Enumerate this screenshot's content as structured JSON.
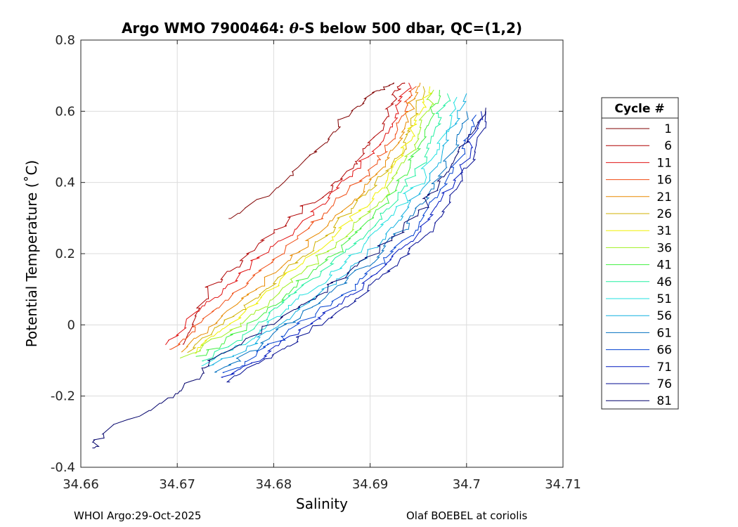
{
  "chart_data": {
    "type": "line",
    "title_prefix": "Argo WMO 7900464: ",
    "title_theta": "θ",
    "title_suffix": "-S below 500 dbar,  QC=(1,2)",
    "xlabel": "Salinity",
    "ylabel": "Potential Temperature (˚C)",
    "xlim": [
      34.66,
      34.71
    ],
    "ylim": [
      -0.4,
      0.8
    ],
    "xticks": [
      34.66,
      34.67,
      34.68,
      34.69,
      34.7,
      34.71
    ],
    "xtick_labels": [
      "34.66",
      "34.67",
      "34.68",
      "34.69",
      "34.7",
      "34.71"
    ],
    "yticks": [
      -0.4,
      -0.2,
      0,
      0.2,
      0.4,
      0.6,
      0.8
    ],
    "ytick_labels": [
      "-0.4",
      "-0.2",
      "0",
      "0.2",
      "0.4",
      "0.6",
      "0.8"
    ],
    "grid": true,
    "legend_title": "Cycle #",
    "legend_position": "outside-right",
    "legend_entries": [
      {
        "label": "1",
        "color": "#800000"
      },
      {
        "label": "6",
        "color": "#b00000"
      },
      {
        "label": "11",
        "color": "#e01010"
      },
      {
        "label": "16",
        "color": "#f04a10"
      },
      {
        "label": "21",
        "color": "#e88a00"
      },
      {
        "label": "26",
        "color": "#d0b000"
      },
      {
        "label": "31",
        "color": "#f0f000"
      },
      {
        "label": "36",
        "color": "#a0f020"
      },
      {
        "label": "41",
        "color": "#40f040"
      },
      {
        "label": "46",
        "color": "#20f0a0"
      },
      {
        "label": "51",
        "color": "#20e0e0"
      },
      {
        "label": "56",
        "color": "#10b0e0"
      },
      {
        "label": "61",
        "color": "#0070c0"
      },
      {
        "label": "66",
        "color": "#0040d0"
      },
      {
        "label": "71",
        "color": "#0018c0"
      },
      {
        "label": "76",
        "color": "#000a90"
      },
      {
        "label": "81",
        "color": "#00006a"
      }
    ],
    "series": [
      {
        "name": "1",
        "color": "#800000",
        "points": [
          [
            34.6755,
            0.3
          ],
          [
            34.681,
            0.4
          ],
          [
            34.6845,
            0.49
          ],
          [
            34.6875,
            0.59
          ],
          [
            34.6905,
            0.66
          ],
          [
            34.6925,
            0.68
          ]
        ]
      },
      {
        "name": "6",
        "color": "#b00000",
        "points": [
          [
            34.6705,
            -0.05
          ],
          [
            34.6735,
            0.1
          ],
          [
            34.677,
            0.2
          ],
          [
            34.681,
            0.28
          ],
          [
            34.6855,
            0.38
          ],
          [
            34.6885,
            0.45
          ],
          [
            34.6905,
            0.53
          ],
          [
            34.6925,
            0.64
          ],
          [
            34.6935,
            0.68
          ]
        ]
      },
      {
        "name": "11",
        "color": "#e01010",
        "points": [
          [
            34.6685,
            -0.06
          ],
          [
            34.6725,
            0.05
          ],
          [
            34.676,
            0.13
          ],
          [
            34.68,
            0.22
          ],
          [
            34.6845,
            0.32
          ],
          [
            34.688,
            0.42
          ],
          [
            34.6905,
            0.49
          ],
          [
            34.6925,
            0.58
          ],
          [
            34.694,
            0.68
          ]
        ]
      },
      {
        "name": "16",
        "color": "#f04a10",
        "points": [
          [
            34.6695,
            -0.07
          ],
          [
            34.673,
            0.02
          ],
          [
            34.6775,
            0.12
          ],
          [
            34.6815,
            0.22
          ],
          [
            34.6855,
            0.32
          ],
          [
            34.6895,
            0.42
          ],
          [
            34.6918,
            0.5
          ],
          [
            34.6935,
            0.6
          ],
          [
            34.6948,
            0.67
          ]
        ]
      },
      {
        "name": "21",
        "color": "#e88a00",
        "points": [
          [
            34.6705,
            -0.07
          ],
          [
            34.674,
            0.01
          ],
          [
            34.678,
            0.1
          ],
          [
            34.682,
            0.19
          ],
          [
            34.686,
            0.29
          ],
          [
            34.6898,
            0.39
          ],
          [
            34.6925,
            0.49
          ],
          [
            34.694,
            0.59
          ],
          [
            34.6952,
            0.68
          ]
        ]
      },
      {
        "name": "26",
        "color": "#d0b000",
        "points": [
          [
            34.671,
            -0.08
          ],
          [
            34.6745,
            0
          ],
          [
            34.6785,
            0.09
          ],
          [
            34.6825,
            0.18
          ],
          [
            34.6865,
            0.28
          ],
          [
            34.6902,
            0.38
          ],
          [
            34.693,
            0.48
          ],
          [
            34.6945,
            0.58
          ],
          [
            34.6955,
            0.67
          ]
        ]
      },
      {
        "name": "31",
        "color": "#f0f000",
        "points": [
          [
            34.6715,
            -0.08
          ],
          [
            34.675,
            -0.01
          ],
          [
            34.679,
            0.08
          ],
          [
            34.683,
            0.17
          ],
          [
            34.687,
            0.27
          ],
          [
            34.6906,
            0.37
          ],
          [
            34.6935,
            0.48
          ],
          [
            34.695,
            0.58
          ],
          [
            34.6962,
            0.67
          ]
        ]
      },
      {
        "name": "36",
        "color": "#a0f020",
        "points": [
          [
            34.6705,
            -0.09
          ],
          [
            34.6755,
            -0.02
          ],
          [
            34.6795,
            0.07
          ],
          [
            34.6835,
            0.16
          ],
          [
            34.6875,
            0.25
          ],
          [
            34.691,
            0.35
          ],
          [
            34.694,
            0.47
          ],
          [
            34.6955,
            0.57
          ],
          [
            34.6966,
            0.66
          ]
        ]
      },
      {
        "name": "41",
        "color": "#40f040",
        "points": [
          [
            34.672,
            -0.09
          ],
          [
            34.676,
            -0.03
          ],
          [
            34.68,
            0.06
          ],
          [
            34.684,
            0.15
          ],
          [
            34.688,
            0.24
          ],
          [
            34.6915,
            0.34
          ],
          [
            34.6945,
            0.46
          ],
          [
            34.696,
            0.56
          ],
          [
            34.6972,
            0.66
          ]
        ]
      },
      {
        "name": "46",
        "color": "#20f0a0",
        "points": [
          [
            34.6725,
            -0.1
          ],
          [
            34.6765,
            -0.04
          ],
          [
            34.6805,
            0.05
          ],
          [
            34.6845,
            0.14
          ],
          [
            34.6885,
            0.23
          ],
          [
            34.692,
            0.33
          ],
          [
            34.695,
            0.44
          ],
          [
            34.6968,
            0.55
          ],
          [
            34.698,
            0.65
          ]
        ]
      },
      {
        "name": "51",
        "color": "#20e0e0",
        "points": [
          [
            34.673,
            -0.11
          ],
          [
            34.677,
            -0.05
          ],
          [
            34.681,
            0.04
          ],
          [
            34.685,
            0.12
          ],
          [
            34.689,
            0.21
          ],
          [
            34.6925,
            0.31
          ],
          [
            34.6955,
            0.42
          ],
          [
            34.6975,
            0.53
          ],
          [
            34.699,
            0.64
          ]
        ]
      },
      {
        "name": "56",
        "color": "#10b0e0",
        "points": [
          [
            34.6735,
            -0.12
          ],
          [
            34.6775,
            -0.06
          ],
          [
            34.6815,
            0.02
          ],
          [
            34.6855,
            0.1
          ],
          [
            34.6895,
            0.19
          ],
          [
            34.693,
            0.29
          ],
          [
            34.696,
            0.4
          ],
          [
            34.698,
            0.52
          ],
          [
            34.7,
            0.65
          ]
        ]
      },
      {
        "name": "61",
        "color": "#0070c0",
        "points": [
          [
            34.674,
            -0.13
          ],
          [
            34.678,
            -0.07
          ],
          [
            34.682,
            0.01
          ],
          [
            34.686,
            0.09
          ],
          [
            34.69,
            0.18
          ],
          [
            34.6935,
            0.27
          ],
          [
            34.6965,
            0.38
          ],
          [
            34.699,
            0.5
          ],
          [
            34.7,
            0.6
          ]
        ]
      },
      {
        "name": "66",
        "color": "#0040d0",
        "points": [
          [
            34.6745,
            -0.14
          ],
          [
            34.6785,
            -0.08
          ],
          [
            34.6825,
            0
          ],
          [
            34.6865,
            0.07
          ],
          [
            34.6905,
            0.16
          ],
          [
            34.694,
            0.25
          ],
          [
            34.697,
            0.36
          ],
          [
            34.6995,
            0.48
          ],
          [
            34.701,
            0.59
          ]
        ]
      },
      {
        "name": "71",
        "color": "#0018c0",
        "points": [
          [
            34.675,
            -0.15
          ],
          [
            34.679,
            -0.09
          ],
          [
            34.683,
            -0.01
          ],
          [
            34.687,
            0.06
          ],
          [
            34.691,
            0.15
          ],
          [
            34.6945,
            0.24
          ],
          [
            34.6975,
            0.35
          ],
          [
            34.7,
            0.47
          ],
          [
            34.7015,
            0.6
          ]
        ]
      },
      {
        "name": "76",
        "color": "#000a90",
        "points": [
          [
            34.6755,
            -0.16
          ],
          [
            34.6795,
            -0.09
          ],
          [
            34.6835,
            -0.02
          ],
          [
            34.6875,
            0.05
          ],
          [
            34.6915,
            0.14
          ],
          [
            34.695,
            0.23
          ],
          [
            34.698,
            0.34
          ],
          [
            34.7005,
            0.46
          ],
          [
            34.702,
            0.6
          ]
        ]
      },
      {
        "name": "81",
        "color": "#00006a",
        "points": [
          [
            34.661,
            -0.35
          ],
          [
            34.6625,
            -0.3
          ],
          [
            34.669,
            -0.21
          ],
          [
            34.6715,
            -0.16
          ],
          [
            34.674,
            -0.09
          ],
          [
            34.6785,
            -0.02
          ],
          [
            34.6825,
            0.05
          ],
          [
            34.6865,
            0.12
          ],
          [
            34.6905,
            0.2
          ],
          [
            34.6945,
            0.3
          ],
          [
            34.6975,
            0.4
          ],
          [
            34.6995,
            0.5
          ],
          [
            34.702,
            0.61
          ]
        ]
      }
    ]
  },
  "footer": {
    "left": "WHOI Argo:29-Oct-2025",
    "right": "Olaf BOEBEL at coriolis"
  }
}
